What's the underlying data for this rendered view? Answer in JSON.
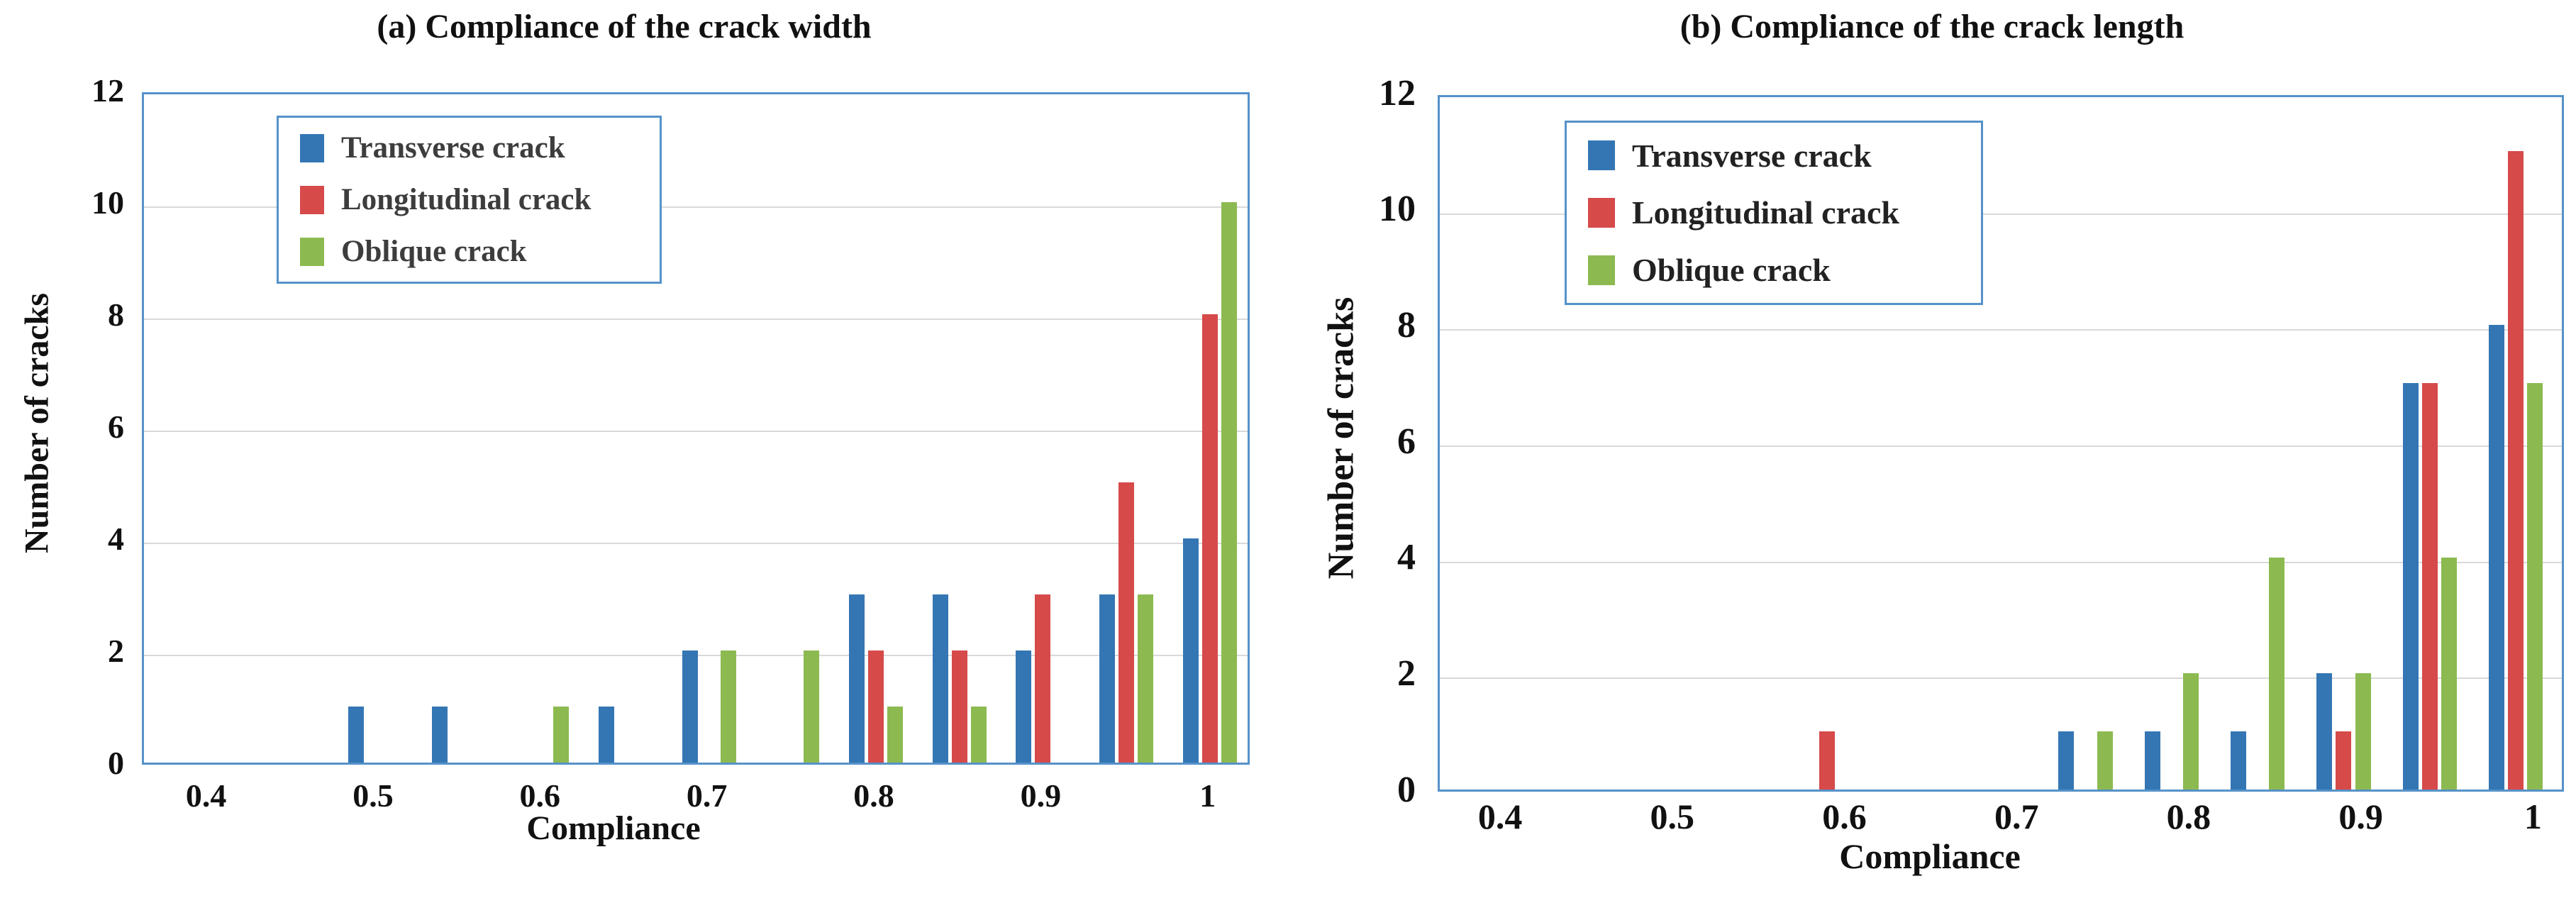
{
  "page": {
    "background": "#FFFFFF"
  },
  "colors": {
    "transverse": "#3476B4",
    "longitudinal": "#D64A4A",
    "oblique": "#8CBA50",
    "plot_border": "#5592C9",
    "gridline": "#D9D9D9",
    "title_text": "#111111",
    "tick_text": "#111111",
    "legend_text": "#3D3D3D",
    "legend_text_b": "#222222",
    "legend_border": "#5592C9"
  },
  "chart_data": [
    {
      "type": "bar",
      "panel_label": "(a)",
      "title": "(a) Compliance of the crack width",
      "xlabel": "Compliance",
      "ylabel": "Number of cracks",
      "ylim": [
        0,
        12
      ],
      "y_ticks": [
        0,
        2,
        4,
        6,
        8,
        10,
        12
      ],
      "x_tick_values": [
        0.4,
        0.5,
        0.6,
        0.7,
        0.8,
        0.9,
        1.0
      ],
      "x_tick_labels": [
        "0.4",
        "0.5",
        "0.6",
        "0.7",
        "0.8",
        "0.9",
        "1"
      ],
      "grid": "horizontal gridlines every 2",
      "legend_position": "upper left inside plot",
      "legend": [
        "Transverse crack",
        "Longitudinal crack",
        "Oblique crack"
      ],
      "series_keys": [
        "transverse",
        "longitudinal",
        "oblique"
      ],
      "clusters": [
        {
          "compliance": 0.5,
          "transverse": 1,
          "longitudinal": 0,
          "oblique": 0
        },
        {
          "compliance": 0.55,
          "transverse": 1,
          "longitudinal": 0,
          "oblique": 0
        },
        {
          "compliance": 0.6,
          "transverse": 0,
          "longitudinal": 0,
          "oblique": 1
        },
        {
          "compliance": 0.65,
          "transverse": 1,
          "longitudinal": 0,
          "oblique": 0
        },
        {
          "compliance": 0.7,
          "transverse": 2,
          "longitudinal": 0,
          "oblique": 2
        },
        {
          "compliance": 0.75,
          "transverse": 0,
          "longitudinal": 0,
          "oblique": 2
        },
        {
          "compliance": 0.8,
          "transverse": 3,
          "longitudinal": 2,
          "oblique": 1
        },
        {
          "compliance": 0.85,
          "transverse": 3,
          "longitudinal": 2,
          "oblique": 1
        },
        {
          "compliance": 0.9,
          "transverse": 2,
          "longitudinal": 3,
          "oblique": 0
        },
        {
          "compliance": 0.95,
          "transverse": 3,
          "longitudinal": 5,
          "oblique": 3
        },
        {
          "compliance": 1.0,
          "transverse": 4,
          "longitudinal": 8,
          "oblique": 10
        }
      ]
    },
    {
      "type": "bar",
      "panel_label": "(b)",
      "title": "(b) Compliance of the crack length",
      "xlabel": "Compliance",
      "ylabel": "Number of cracks",
      "ylim": [
        0,
        12
      ],
      "y_ticks": [
        0,
        2,
        4,
        6,
        8,
        10,
        12
      ],
      "x_tick_values": [
        0.4,
        0.5,
        0.6,
        0.7,
        0.8,
        0.9,
        1.0
      ],
      "x_tick_labels": [
        "0.4",
        "0.5",
        "0.6",
        "0.7",
        "0.8",
        "0.9",
        "1"
      ],
      "grid": "horizontal gridlines every 2",
      "legend_position": "upper left inside plot",
      "legend": [
        "Transverse crack",
        "Longitudinal crack",
        "Oblique crack"
      ],
      "series_keys": [
        "transverse",
        "longitudinal",
        "oblique"
      ],
      "clusters": [
        {
          "compliance": 0.6,
          "transverse": 0,
          "longitudinal": 1,
          "oblique": 0
        },
        {
          "compliance": 0.75,
          "transverse": 1,
          "longitudinal": 0,
          "oblique": 1
        },
        {
          "compliance": 0.8,
          "transverse": 1,
          "longitudinal": 0,
          "oblique": 2
        },
        {
          "compliance": 0.85,
          "transverse": 1,
          "longitudinal": 0,
          "oblique": 4
        },
        {
          "compliance": 0.9,
          "transverse": 2,
          "longitudinal": 1,
          "oblique": 2
        },
        {
          "compliance": 0.95,
          "transverse": 7,
          "longitudinal": 7,
          "oblique": 4
        },
        {
          "compliance": 1.0,
          "transverse": 8,
          "longitudinal": 11,
          "oblique": 7
        }
      ]
    }
  ]
}
